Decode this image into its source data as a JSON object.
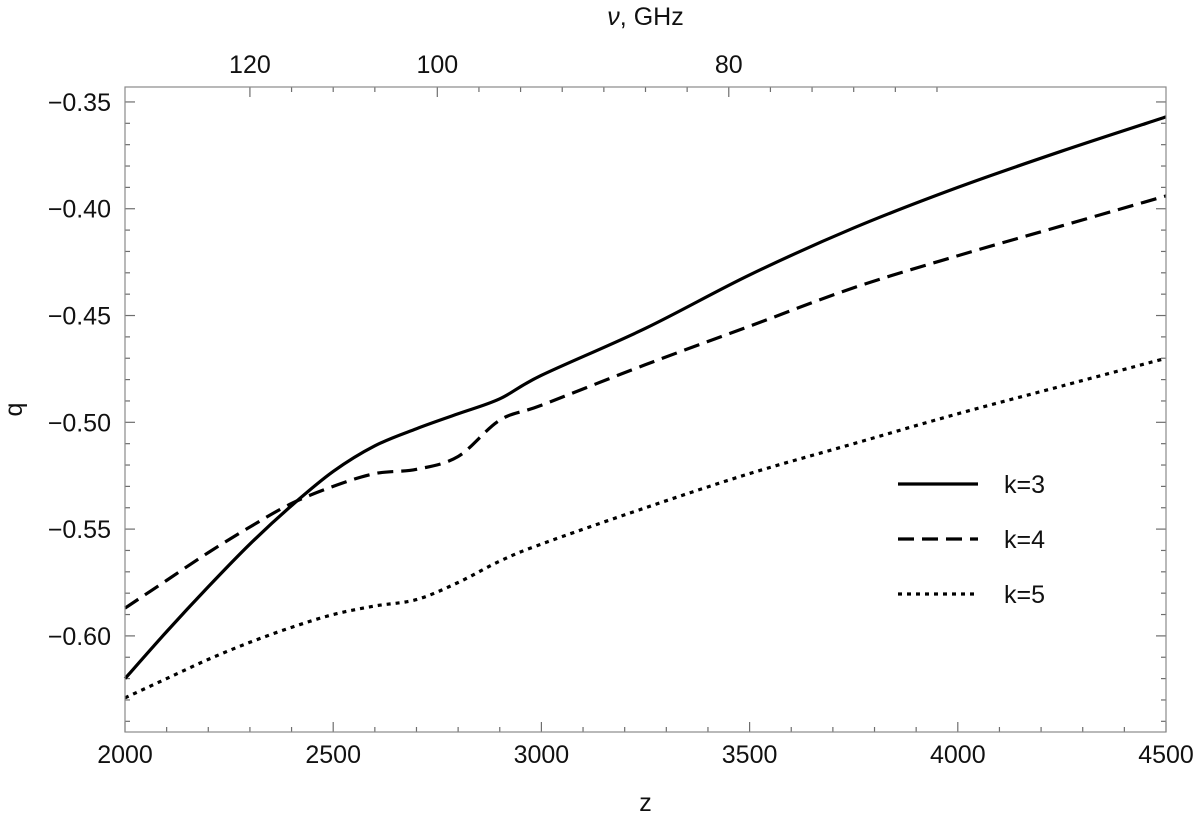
{
  "chart_data": {
    "type": "line",
    "xlabel": "z",
    "ylabel": "q",
    "top_axis_label": {
      "symbol": "ν",
      "unit": ", GHz"
    },
    "xlim": [
      2000,
      4500
    ],
    "ylim": [
      -0.645,
      -0.343
    ],
    "x_major_ticks": [
      2000,
      2500,
      3000,
      3500,
      4000,
      4500
    ],
    "x_minor_step": 100,
    "y_major_ticks": [
      -0.35,
      -0.4,
      -0.45,
      -0.5,
      -0.55,
      -0.6
    ],
    "y_minor_step": 0.01,
    "y_tick_labels": [
      "-0.35",
      "-0.40",
      "-0.45",
      "-0.50",
      "-0.55",
      "-0.60"
    ],
    "top_ticks": [
      {
        "z": 2300,
        "label": "120"
      },
      {
        "z": 2750,
        "label": "100"
      },
      {
        "z": 3450,
        "label": "80"
      }
    ],
    "grid": false,
    "legend_position": "right",
    "series": [
      {
        "name": "k=3",
        "style": "solid",
        "x": [
          2000,
          2100,
          2200,
          2300,
          2400,
          2500,
          2600,
          2700,
          2800,
          2900,
          3000,
          3250,
          3500,
          3750,
          4000,
          4250,
          4500
        ],
        "y": [
          -0.62,
          -0.598,
          -0.577,
          -0.557,
          -0.539,
          -0.523,
          -0.511,
          -0.503,
          -0.496,
          -0.489,
          -0.478,
          -0.456,
          -0.431,
          -0.409,
          -0.39,
          -0.373,
          -0.357
        ]
      },
      {
        "name": "k=4",
        "style": "dashed",
        "x": [
          2000,
          2100,
          2200,
          2300,
          2400,
          2500,
          2600,
          2700,
          2800,
          2900,
          3000,
          3250,
          3500,
          3750,
          4000,
          4250,
          4500
        ],
        "y": [
          -0.587,
          -0.574,
          -0.561,
          -0.549,
          -0.538,
          -0.53,
          -0.524,
          -0.522,
          -0.516,
          -0.499,
          -0.492,
          -0.473,
          -0.455,
          -0.437,
          -0.422,
          -0.408,
          -0.394
        ]
      },
      {
        "name": "k=5",
        "style": "dotted",
        "x": [
          2000,
          2100,
          2200,
          2300,
          2400,
          2500,
          2600,
          2700,
          2800,
          2900,
          3000,
          3250,
          3500,
          3750,
          4000,
          4250,
          4500
        ],
        "y": [
          -0.629,
          -0.62,
          -0.611,
          -0.603,
          -0.596,
          -0.59,
          -0.586,
          -0.583,
          -0.575,
          -0.565,
          -0.557,
          -0.54,
          -0.524,
          -0.51,
          -0.496,
          -0.483,
          -0.47
        ]
      }
    ]
  }
}
